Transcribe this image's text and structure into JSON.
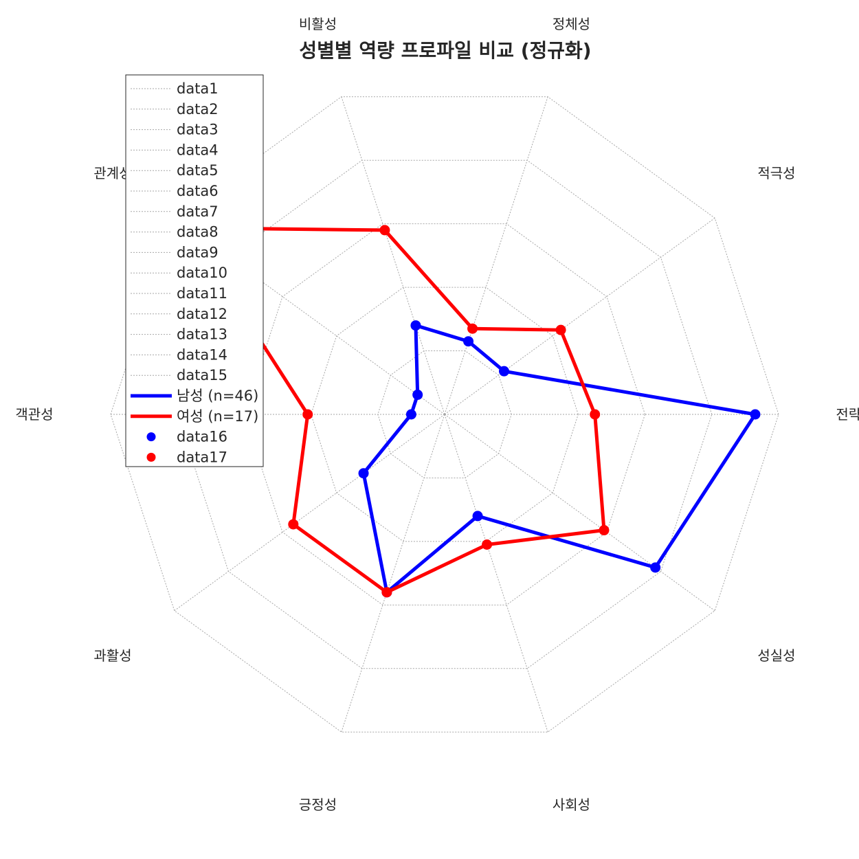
{
  "chart_data": {
    "type": "radar",
    "title": "성별별 역량 프로파일 비교 (정규화)",
    "axes": [
      "전략성",
      "적극성",
      "정체성",
      "비활성",
      "관계성",
      "객관성",
      "과활성",
      "긍정성",
      "사회성",
      "성실성"
    ],
    "rmax": 1.0,
    "rings": [
      0.2,
      0.4,
      0.6,
      0.8,
      1.0
    ],
    "series": [
      {
        "name": "남성 (n=46)",
        "color": "#0000ff",
        "values": [
          0.93,
          0.22,
          0.23,
          0.28,
          0.1,
          0.1,
          0.3,
          0.56,
          0.32,
          0.78
        ]
      },
      {
        "name": "여성 (n=17)",
        "color": "#ff0000",
        "values": [
          0.45,
          0.43,
          0.27,
          0.58,
          0.95,
          0.41,
          0.56,
          0.56,
          0.41,
          0.59
        ]
      }
    ],
    "legend": {
      "position": "top-left",
      "entries": [
        {
          "label": "data1",
          "style": "grid"
        },
        {
          "label": "data2",
          "style": "grid"
        },
        {
          "label": "data3",
          "style": "grid"
        },
        {
          "label": "data4",
          "style": "grid"
        },
        {
          "label": "data5",
          "style": "grid"
        },
        {
          "label": "data6",
          "style": "grid"
        },
        {
          "label": "data7",
          "style": "grid"
        },
        {
          "label": "data8",
          "style": "grid"
        },
        {
          "label": "data9",
          "style": "grid"
        },
        {
          "label": "data10",
          "style": "grid"
        },
        {
          "label": "data11",
          "style": "grid"
        },
        {
          "label": "data12",
          "style": "grid"
        },
        {
          "label": "data13",
          "style": "grid"
        },
        {
          "label": "data14",
          "style": "grid"
        },
        {
          "label": "data15",
          "style": "grid"
        },
        {
          "label": "남성 (n=46)",
          "style": "line",
          "color": "#0000ff"
        },
        {
          "label": "여성 (n=17)",
          "style": "line",
          "color": "#ff0000"
        },
        {
          "label": "data16",
          "style": "marker",
          "color": "#0000ff"
        },
        {
          "label": "data17",
          "style": "marker",
          "color": "#ff0000"
        }
      ]
    },
    "grid_color": "#a6a6a6"
  }
}
